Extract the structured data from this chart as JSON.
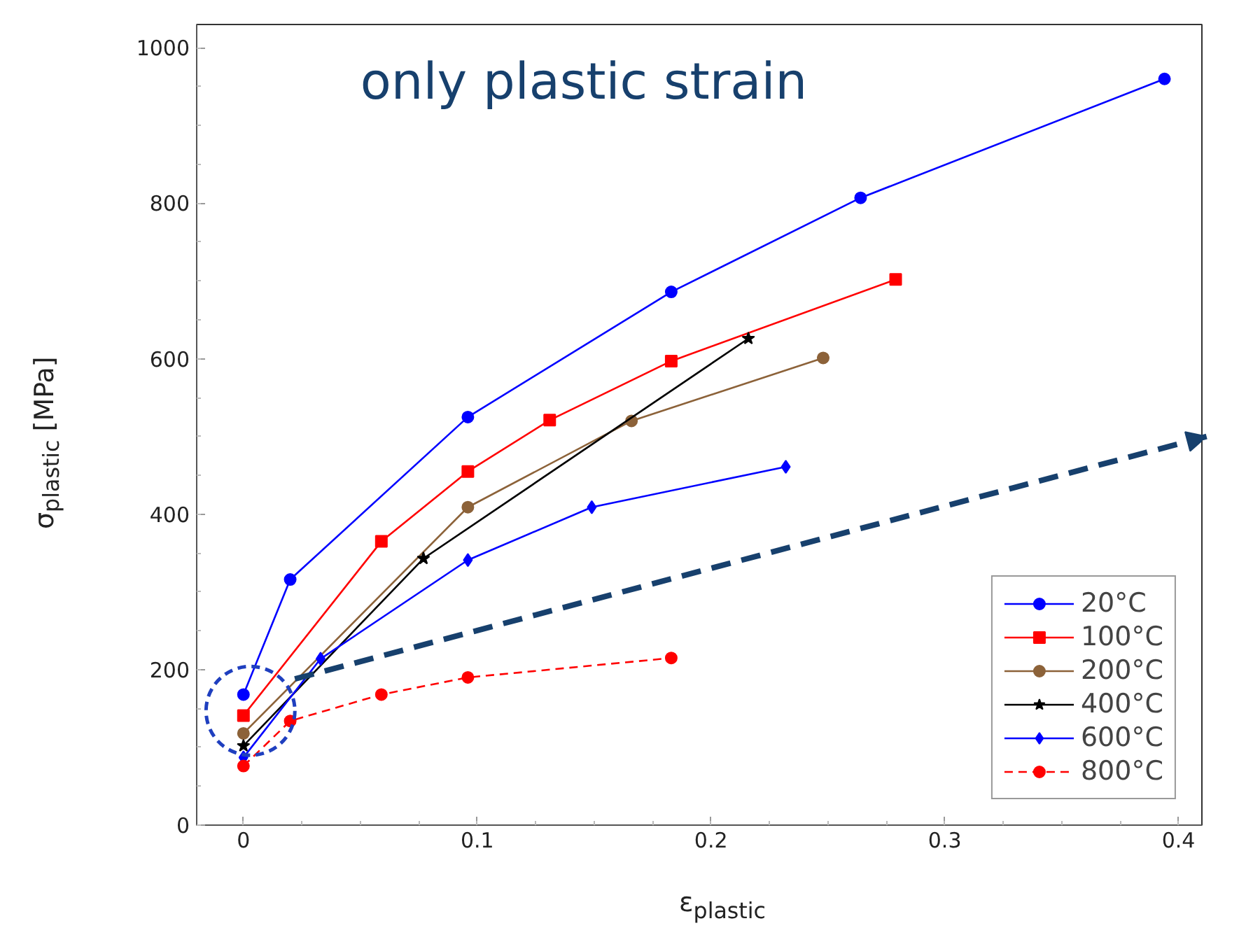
{
  "chart_data": {
    "type": "line",
    "xlabel": "ε$_{plastic}$",
    "ylabel": "σ$_{plastic}$  [MPa]",
    "annotations": [
      "only plastic strain"
    ],
    "xlim": [
      -0.02,
      0.41
    ],
    "ylim": [
      0,
      1030
    ],
    "xticks": [
      0,
      0.1,
      0.2,
      0.3,
      0.4
    ],
    "yticks": [
      0,
      200,
      400,
      600,
      800,
      1000
    ],
    "grid": false,
    "legend": "bottom right",
    "series": [
      {
        "name": "20°C",
        "color": "#0000ff",
        "marker": "circle",
        "line_style": "solid",
        "x": [
          0,
          0.02,
          0.096,
          0.183,
          0.264,
          0.394
        ],
        "values": [
          168,
          316,
          525,
          686,
          807,
          960
        ]
      },
      {
        "name": "100°C",
        "color": "#ff0000",
        "marker": "square",
        "line_style": "solid",
        "x": [
          0,
          0.059,
          0.096,
          0.131,
          0.183,
          0.279
        ],
        "values": [
          141,
          365,
          455,
          521,
          597,
          702
        ]
      },
      {
        "name": "200°C",
        "color": "#8c6239",
        "marker": "circle",
        "line_style": "solid",
        "x": [
          0,
          0.096,
          0.166,
          0.248
        ],
        "values": [
          118,
          409,
          520,
          601
        ]
      },
      {
        "name": "400°C",
        "color": "#000000",
        "marker": "star",
        "line_style": "solid",
        "x": [
          0,
          0.077,
          0.216
        ],
        "values": [
          102,
          343,
          626
        ]
      },
      {
        "name": "600°C",
        "color": "#0000ff",
        "marker": "diamond",
        "line_style": "solid",
        "x": [
          0,
          0.033,
          0.096,
          0.149,
          0.232
        ],
        "values": [
          87,
          214,
          341,
          409,
          461
        ]
      },
      {
        "name": "800°C",
        "color": "#ff0000",
        "marker": "circle",
        "line_style": "dashed",
        "x": [
          0,
          0.02,
          0.059,
          0.096,
          0.183
        ],
        "values": [
          76,
          134,
          168,
          190,
          215
        ]
      }
    ]
  }
}
